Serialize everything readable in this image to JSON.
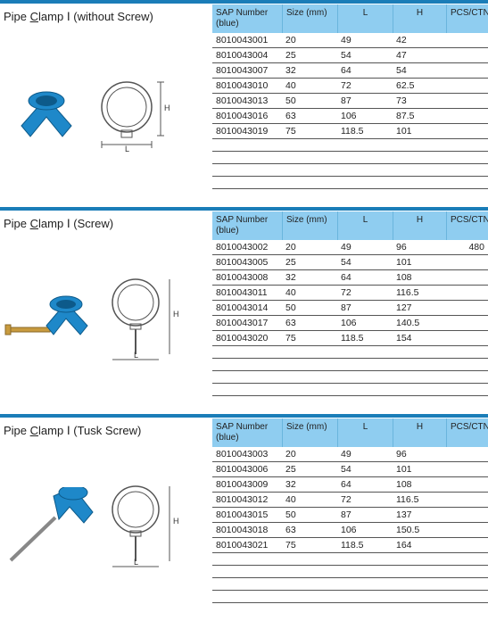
{
  "sections": [
    {
      "title_prefix": "Pipe ",
      "title_letter": "C",
      "title_rest": "lamp Ⅰ (without Screw)",
      "headers": {
        "sap": "SAP Number (blue)",
        "size": "Size (mm)",
        "l": "L",
        "h": "H",
        "pcs": "PCS/CTN"
      },
      "rows": [
        {
          "sap": "8010043001",
          "size": "20",
          "l": "49",
          "h": "42",
          "pcs": ""
        },
        {
          "sap": "8010043004",
          "size": "25",
          "l": "54",
          "h": "47",
          "pcs": ""
        },
        {
          "sap": "8010043007",
          "size": "32",
          "l": "64",
          "h": "54",
          "pcs": ""
        },
        {
          "sap": "8010043010",
          "size": "40",
          "l": "72",
          "h": "62.5",
          "pcs": ""
        },
        {
          "sap": "8010043013",
          "size": "50",
          "l": "87",
          "h": "73",
          "pcs": ""
        },
        {
          "sap": "8010043016",
          "size": "63",
          "l": "106",
          "h": "87.5",
          "pcs": ""
        },
        {
          "sap": "8010043019",
          "size": "75",
          "l": "118.5",
          "h": "101",
          "pcs": ""
        }
      ],
      "image_type": "clamp",
      "colors": {
        "bar": "#1a7db8",
        "header_bg": "#8fcdf0",
        "header_border": "#6ab5dd",
        "row_border": "#555555",
        "clamp_fill": "#1e88c9",
        "clamp_stroke": "#0d5a8a",
        "dim_line": "#555555"
      }
    },
    {
      "title_prefix": "Pipe ",
      "title_letter": "C",
      "title_rest": "lamp Ⅰ (Screw)",
      "headers": {
        "sap": "SAP Number (blue)",
        "size": "Size (mm)",
        "l": "L",
        "h": "H",
        "pcs": "PCS/CTN"
      },
      "rows": [
        {
          "sap": "8010043002",
          "size": "20",
          "l": "49",
          "h": "96",
          "pcs": "480"
        },
        {
          "sap": "8010043005",
          "size": "25",
          "l": "54",
          "h": "101",
          "pcs": ""
        },
        {
          "sap": "8010043008",
          "size": "32",
          "l": "64",
          "h": "108",
          "pcs": ""
        },
        {
          "sap": "8010043011",
          "size": "40",
          "l": "72",
          "h": "116.5",
          "pcs": ""
        },
        {
          "sap": "8010043014",
          "size": "50",
          "l": "87",
          "h": "127",
          "pcs": ""
        },
        {
          "sap": "8010043017",
          "size": "63",
          "l": "106",
          "h": "140.5",
          "pcs": ""
        },
        {
          "sap": "8010043020",
          "size": "75",
          "l": "118.5",
          "h": "154",
          "pcs": ""
        }
      ],
      "image_type": "clamp_screw",
      "colors": {
        "bar": "#1a7db8",
        "header_bg": "#8fcdf0",
        "clamp_fill": "#1e88c9",
        "screw_fill": "#c89b3f"
      }
    },
    {
      "title_prefix": "Pipe ",
      "title_letter": "C",
      "title_rest": "lamp Ⅰ (Tusk Screw)",
      "headers": {
        "sap": "SAP Number (blue)",
        "size": "Size (mm)",
        "l": "L",
        "h": "H",
        "pcs": "PCS/CTN"
      },
      "rows": [
        {
          "sap": "8010043003",
          "size": "20",
          "l": "49",
          "h": "96",
          "pcs": ""
        },
        {
          "sap": "8010043006",
          "size": "25",
          "l": "54",
          "h": "101",
          "pcs": ""
        },
        {
          "sap": "8010043009",
          "size": "32",
          "l": "64",
          "h": "108",
          "pcs": ""
        },
        {
          "sap": "8010043012",
          "size": "40",
          "l": "72",
          "h": "116.5",
          "pcs": ""
        },
        {
          "sap": "8010043015",
          "size": "50",
          "l": "87",
          "h": "137",
          "pcs": ""
        },
        {
          "sap": "8010043018",
          "size": "63",
          "l": "106",
          "h": "150.5",
          "pcs": ""
        },
        {
          "sap": "8010043021",
          "size": "75",
          "l": "118.5",
          "h": "164",
          "pcs": ""
        }
      ],
      "image_type": "clamp_tusk",
      "colors": {
        "bar": "#1a7db8",
        "header_bg": "#8fcdf0",
        "clamp_fill": "#1e88c9",
        "tusk_fill": "#888888"
      }
    }
  ]
}
